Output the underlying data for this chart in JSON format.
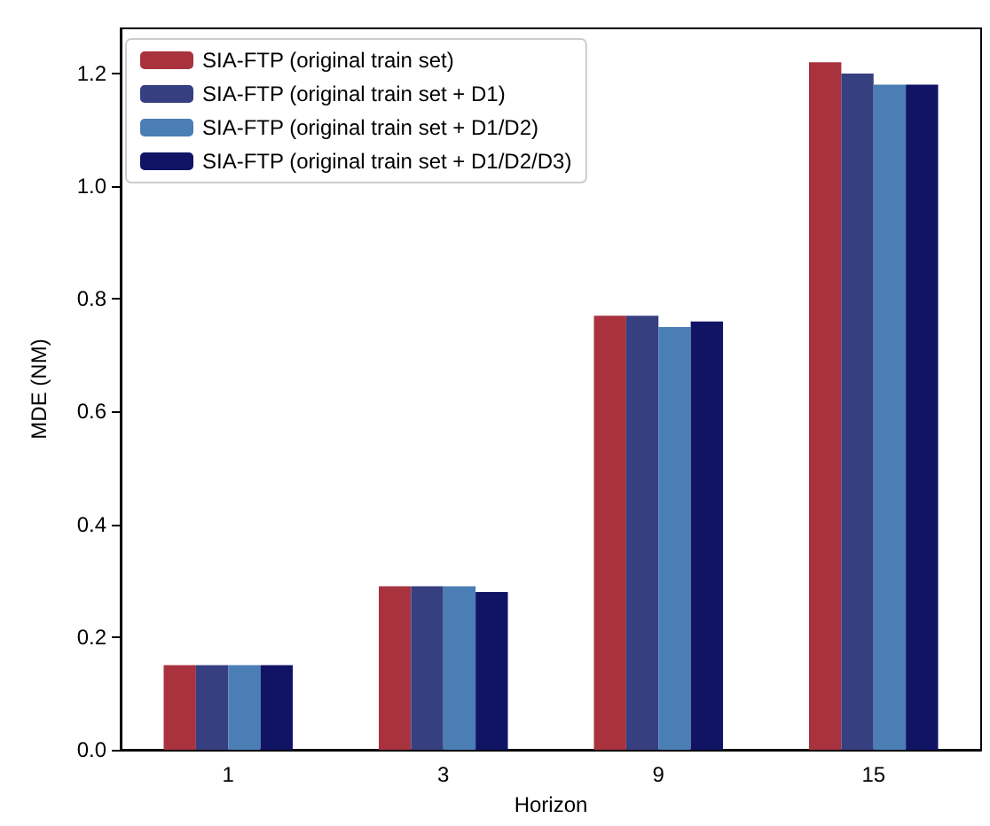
{
  "chart_data": {
    "type": "bar",
    "xlabel": "Horizon",
    "ylabel": "MDE (NM)",
    "categories": [
      "1",
      "3",
      "9",
      "15"
    ],
    "series": [
      {
        "name": "SIA-FTP (original train set)",
        "color": "#a8323e",
        "values": [
          0.15,
          0.29,
          0.77,
          1.22
        ]
      },
      {
        "name": "SIA-FTP (original train set + D1)",
        "color": "#363f80",
        "values": [
          0.15,
          0.29,
          0.77,
          1.2
        ]
      },
      {
        "name": "SIA-FTP (original train set + D1/D2)",
        "color": "#4a7eb5",
        "values": [
          0.15,
          0.29,
          0.75,
          1.18
        ]
      },
      {
        "name": "SIA-FTP (original train set + D1/D2/D3)",
        "color": "#111465",
        "values": [
          0.15,
          0.28,
          0.76,
          1.18
        ]
      }
    ],
    "ylim": [
      0,
      1.28
    ],
    "yticks": [
      {
        "value": 0,
        "label": "0.0"
      },
      0.2,
      0.4,
      0.6,
      0.8,
      {
        "value": 1,
        "label": "1.0"
      },
      1.2
    ],
    "grid": false,
    "legend": "top left"
  }
}
